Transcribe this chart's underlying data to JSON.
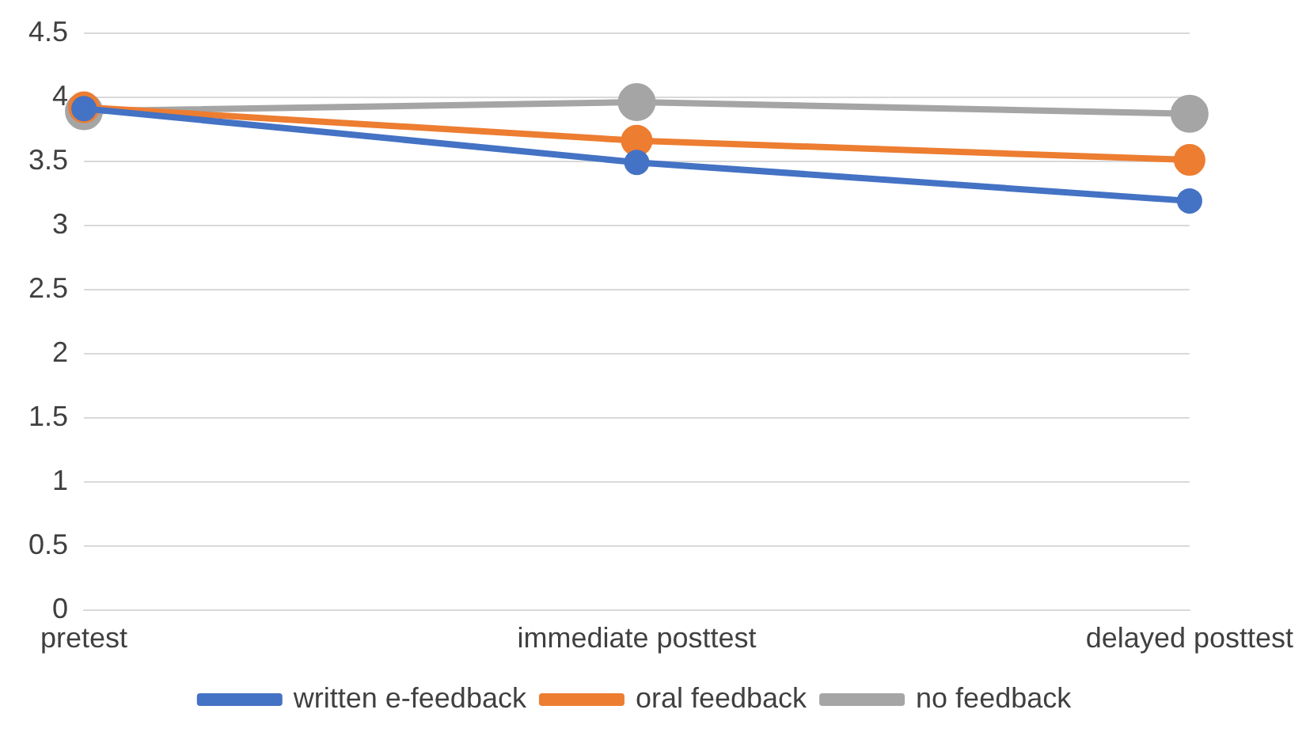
{
  "chart_data": {
    "type": "line",
    "categories": [
      "pretest",
      "immediate posttest",
      "delayed posttest"
    ],
    "series": [
      {
        "name": "written e-feedback",
        "color": "#4472c4",
        "values": [
          3.91,
          3.49,
          3.19
        ]
      },
      {
        "name": "oral feedback",
        "color": "#ed7d31",
        "values": [
          3.92,
          3.66,
          3.51
        ]
      },
      {
        "name": "no feedback",
        "color": "#a5a5a5",
        "values": [
          3.89,
          3.96,
          3.87
        ]
      }
    ],
    "ylim": [
      0,
      4.5
    ],
    "yticks": [
      0,
      0.5,
      1,
      1.5,
      2,
      2.5,
      3,
      3.5,
      4,
      4.5
    ],
    "grid": "y",
    "legend": "bottom",
    "marker": "circle",
    "line_style": "solid"
  }
}
